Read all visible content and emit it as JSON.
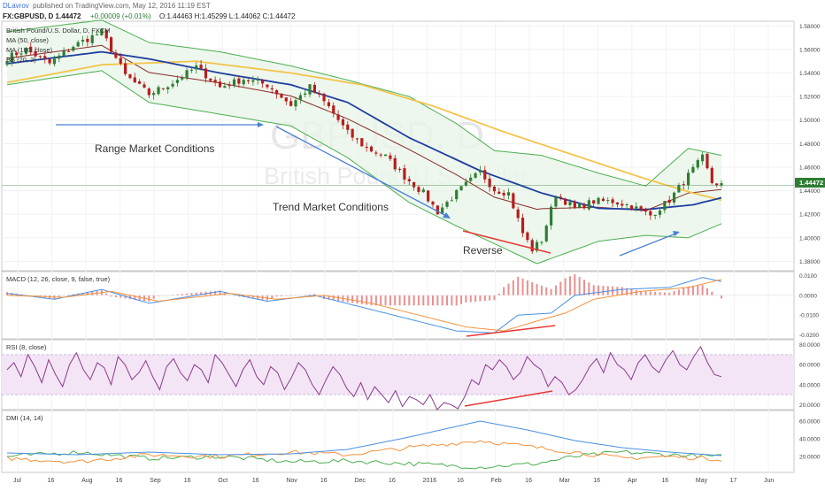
{
  "header": {
    "author": "DLavrov",
    "published": "published on TradingView.com, May 12, 2016 11:19 EST",
    "symbol_line": "FX:GBPUSD, D 1.44472",
    "change": "+0.00009 (+0.01%)",
    "ohlc": "O:1.44463 H:1.45299 L:1.44062 C:1.44472"
  },
  "colors": {
    "price_up": "#2e7d32",
    "price_down": "#b71c1c",
    "bb_band": "#4caf50",
    "bb_fill": "#e8f5e9",
    "ma50": "#1f3f9f",
    "ma100": "#f2c44c",
    "bb_basis": "#8b2b2b",
    "arrow": "#4a7fd4",
    "reverse": "#e53935",
    "macd_line": "#4a90e2",
    "signal_line": "#f5923e",
    "hist": "#e57373",
    "rsi": "#8b3a8b",
    "rsi_band": "#f3e5f5",
    "dmi_plus": "#4caf50",
    "dmi_minus": "#f5923e",
    "adx": "#4a90e2"
  },
  "watermark": {
    "symbol": "GBPUSD, D",
    "name": "British Pound/U.S. Dollar"
  },
  "legend": {
    "main": "British Pound/U.S. Dollar, D, FXCM",
    "ma50": "MA (50, close)",
    "ma100": "MA (100, close)",
    "bb": "BB (20, 2)"
  },
  "annotations": {
    "range": "Range Market Conditions",
    "trend": "Trend Market Conditions",
    "reverse": "Reverse"
  },
  "price_tag": "1.44472",
  "chart_data": [
    {
      "type": "candlestick",
      "title": "British Pound/U.S. Dollar, D, FXCM",
      "ylim": [
        1.372,
        1.584
      ],
      "y_ticks": [
        "1.58000",
        "1.56000",
        "1.54000",
        "1.52000",
        "1.50000",
        "1.48000",
        "1.46000",
        "1.44000",
        "1.42000",
        "1.40000",
        "1.38000"
      ],
      "x_ticks": [
        "Jul",
        "16",
        "Aug",
        "16",
        "Sep",
        "16",
        "Oct",
        "16",
        "Nov",
        "16",
        "Dec",
        "16",
        "2016",
        "16",
        "Feb",
        "16",
        "Mar",
        "16",
        "Apr",
        "16",
        "May",
        "17",
        "Jun"
      ],
      "close_path": [
        [
          0,
          1.553
        ],
        [
          4,
          1.56
        ],
        [
          9,
          1.548
        ],
        [
          14,
          1.563
        ],
        [
          20,
          1.575
        ],
        [
          25,
          1.538
        ],
        [
          30,
          1.522
        ],
        [
          35,
          1.532
        ],
        [
          40,
          1.545
        ],
        [
          45,
          1.528
        ],
        [
          50,
          1.535
        ],
        [
          55,
          1.53
        ],
        [
          60,
          1.513
        ],
        [
          64,
          1.528
        ],
        [
          68,
          1.511
        ],
        [
          72,
          1.489
        ],
        [
          76,
          1.476
        ],
        [
          80,
          1.469
        ],
        [
          84,
          1.452
        ],
        [
          88,
          1.438
        ],
        [
          91,
          1.422
        ],
        [
          95,
          1.438
        ],
        [
          100,
          1.456
        ],
        [
          103,
          1.441
        ],
        [
          106,
          1.438
        ],
        [
          109,
          1.404
        ],
        [
          111,
          1.39
        ],
        [
          113,
          1.398
        ],
        [
          116,
          1.437
        ],
        [
          120,
          1.425
        ],
        [
          124,
          1.431
        ],
        [
          128,
          1.431
        ],
        [
          132,
          1.427
        ],
        [
          136,
          1.419
        ],
        [
          140,
          1.432
        ],
        [
          144,
          1.453
        ],
        [
          147,
          1.468
        ],
        [
          149,
          1.447
        ],
        [
          151,
          1.445
        ]
      ],
      "series": [
        {
          "name": "MA (50, close)",
          "path": [
            [
              0,
              1.548
            ],
            [
              20,
              1.558
            ],
            [
              30,
              1.552
            ],
            [
              45,
              1.54
            ],
            [
              60,
              1.53
            ],
            [
              72,
              1.515
            ],
            [
              85,
              1.485
            ],
            [
              100,
              1.457
            ],
            [
              113,
              1.438
            ],
            [
              125,
              1.425
            ],
            [
              135,
              1.424
            ],
            [
              145,
              1.428
            ],
            [
              151,
              1.434
            ]
          ]
        },
        {
          "name": "MA (100, close)",
          "path": [
            [
              0,
              1.532
            ],
            [
              20,
              1.547
            ],
            [
              40,
              1.55
            ],
            [
              60,
              1.54
            ],
            [
              75,
              1.53
            ],
            [
              90,
              1.512
            ],
            [
              105,
              1.49
            ],
            [
              120,
              1.47
            ],
            [
              135,
              1.45
            ],
            [
              145,
              1.438
            ],
            [
              151,
              1.432
            ]
          ]
        },
        {
          "name": "BB (20, 2)",
          "upper": [
            [
              0,
              1.575
            ],
            [
              20,
              1.585
            ],
            [
              30,
              1.566
            ],
            [
              45,
              1.558
            ],
            [
              60,
              1.546
            ],
            [
              72,
              1.534
            ],
            [
              85,
              1.52
            ],
            [
              95,
              1.497
            ],
            [
              103,
              1.474
            ],
            [
              113,
              1.47
            ],
            [
              125,
              1.455
            ],
            [
              135,
              1.444
            ],
            [
              144,
              1.476
            ],
            [
              151,
              1.47
            ]
          ],
          "lower": [
            [
              0,
              1.53
            ],
            [
              20,
              1.542
            ],
            [
              30,
              1.515
            ],
            [
              45,
              1.505
            ],
            [
              60,
              1.495
            ],
            [
              72,
              1.468
            ],
            [
              85,
              1.43
            ],
            [
              95,
              1.41
            ],
            [
              103,
              1.395
            ],
            [
              112,
              1.378
            ],
            [
              125,
              1.397
            ],
            [
              135,
              1.402
            ],
            [
              144,
              1.4
            ],
            [
              151,
              1.412
            ]
          ]
        }
      ]
    },
    {
      "type": "line",
      "title": "MACD (12, 26, close, 9, false, true)",
      "ylim": [
        -0.022,
        0.012
      ],
      "y_ticks": [
        "0.0100",
        "0.0000",
        "-0.0100",
        "-0.0200"
      ],
      "series": [
        {
          "name": "MACD",
          "path": [
            [
              0,
              0.001
            ],
            [
              10,
              -0.002
            ],
            [
              20,
              0.003
            ],
            [
              30,
              -0.004
            ],
            [
              45,
              0.002
            ],
            [
              55,
              -0.003
            ],
            [
              65,
              0.0
            ],
            [
              75,
              -0.006
            ],
            [
              85,
              -0.012
            ],
            [
              95,
              -0.018
            ],
            [
              103,
              -0.019
            ],
            [
              108,
              -0.01
            ],
            [
              115,
              -0.009
            ],
            [
              120,
              0.0
            ],
            [
              130,
              0.003
            ],
            [
              140,
              0.004
            ],
            [
              147,
              0.009
            ],
            [
              151,
              0.007
            ]
          ]
        },
        {
          "name": "Signal",
          "path": [
            [
              0,
              0.0
            ],
            [
              12,
              -0.001
            ],
            [
              22,
              0.002
            ],
            [
              32,
              -0.003
            ],
            [
              47,
              0.001
            ],
            [
              57,
              -0.002
            ],
            [
              67,
              0.0
            ],
            [
              77,
              -0.004
            ],
            [
              87,
              -0.01
            ],
            [
              97,
              -0.016
            ],
            [
              105,
              -0.018
            ],
            [
              112,
              -0.013
            ],
            [
              118,
              -0.009
            ],
            [
              124,
              -0.002
            ],
            [
              134,
              0.002
            ],
            [
              144,
              0.004
            ],
            [
              151,
              0.008
            ]
          ]
        }
      ]
    },
    {
      "type": "line",
      "title": "RSI (8, close)",
      "ylim": [
        15,
        85
      ],
      "y_ticks": [
        "80.0000",
        "60.0000",
        "40.0000",
        "20.0000"
      ],
      "overbought": 70,
      "oversold": 30,
      "series": [
        {
          "name": "RSI",
          "values": [
            55,
            62,
            48,
            70,
            58,
            42,
            65,
            50,
            38,
            60,
            72,
            55,
            45,
            62,
            57,
            40,
            68,
            60,
            45,
            52,
            64,
            48,
            35,
            58,
            66,
            52,
            44,
            60,
            55,
            42,
            70,
            62,
            50,
            38,
            55,
            65,
            48,
            40,
            58,
            52,
            35,
            47,
            62,
            55,
            40,
            30,
            45,
            58,
            50,
            36,
            28,
            42,
            25,
            38,
            30,
            22,
            34,
            18,
            28,
            25,
            20,
            30,
            15,
            22,
            20,
            16,
            28,
            45,
            40,
            60,
            55,
            65,
            58,
            45,
            52,
            68,
            60,
            55,
            38,
            48,
            42,
            30,
            35,
            45,
            58,
            66,
            52,
            72,
            60,
            55,
            45,
            62,
            70,
            58,
            52,
            65,
            74,
            60,
            55,
            68,
            78,
            62,
            50,
            48
          ]
        }
      ]
    },
    {
      "type": "line",
      "title": "DMI (14, 14)",
      "ylim": [
        2,
        72
      ],
      "y_ticks": [
        "60.0000",
        "40.0000",
        "20.0000"
      ],
      "series": [
        {
          "name": "+DI",
          "path": [
            [
              0,
              20
            ],
            [
              15,
              25
            ],
            [
              30,
              18
            ],
            [
              45,
              20
            ],
            [
              60,
              14
            ],
            [
              72,
              15
            ],
            [
              85,
              12
            ],
            [
              100,
              8
            ],
            [
              112,
              12
            ],
            [
              120,
              20
            ],
            [
              130,
              25
            ],
            [
              140,
              22
            ],
            [
              151,
              20
            ]
          ]
        },
        {
          "name": "-DI",
          "path": [
            [
              0,
              18
            ],
            [
              15,
              14
            ],
            [
              30,
              22
            ],
            [
              45,
              20
            ],
            [
              60,
              25
            ],
            [
              72,
              22
            ],
            [
              85,
              30
            ],
            [
              100,
              38
            ],
            [
              112,
              30
            ],
            [
              120,
              25
            ],
            [
              130,
              18
            ],
            [
              140,
              20
            ],
            [
              151,
              17
            ]
          ]
        },
        {
          "name": "ADX",
          "path": [
            [
              0,
              24
            ],
            [
              15,
              22
            ],
            [
              30,
              25
            ],
            [
              45,
              22
            ],
            [
              60,
              23
            ],
            [
              72,
              28
            ],
            [
              85,
              42
            ],
            [
              100,
              60
            ],
            [
              110,
              50
            ],
            [
              120,
              38
            ],
            [
              130,
              30
            ],
            [
              140,
              25
            ],
            [
              151,
              21
            ]
          ]
        }
      ]
    }
  ]
}
